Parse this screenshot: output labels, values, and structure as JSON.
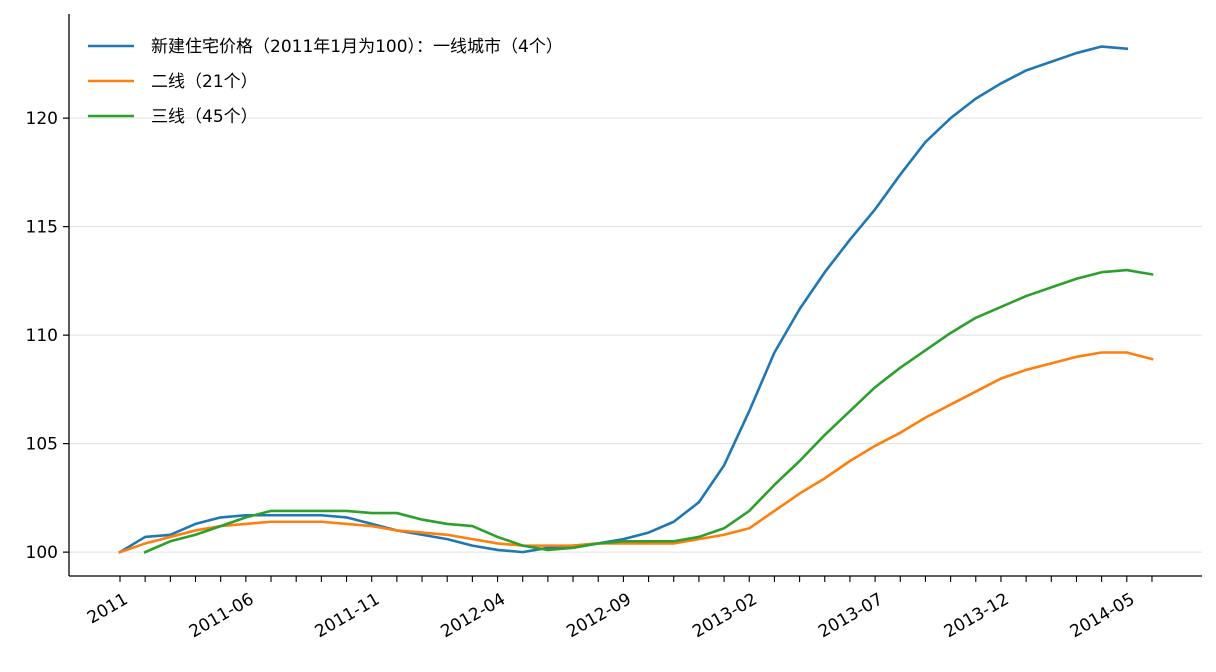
{
  "chart_data": {
    "type": "line",
    "title": "",
    "xlabel": "",
    "ylabel": "",
    "ylim": [
      98.9,
      124.8
    ],
    "y_ticks": [
      100,
      105,
      110,
      115,
      120
    ],
    "x_tick_labels": [
      "2011",
      "2011-06",
      "2011-11",
      "2012-04",
      "2012-09",
      "2013-02",
      "2013-07",
      "2013-12",
      "2014-05"
    ],
    "x_start": "2011-01",
    "grid": "horizontal",
    "legend_position": "top-left",
    "series": [
      {
        "name": "新建住宅价格（2011年1月为100）：一线城市（4个）",
        "color": "#1f77b4",
        "start_month_index": 0,
        "values": [
          100.0,
          100.7,
          100.8,
          101.3,
          101.6,
          101.7,
          101.7,
          101.7,
          101.7,
          101.6,
          101.3,
          101.0,
          100.8,
          100.6,
          100.3,
          100.1,
          100.0,
          100.2,
          100.3,
          100.4,
          100.6,
          100.9,
          101.4,
          102.3,
          104.0,
          106.5,
          109.2,
          111.2,
          112.9,
          114.4,
          115.8,
          117.4,
          118.9,
          120.0,
          120.9,
          121.6,
          122.2,
          122.6,
          123.0,
          123.3,
          123.2
        ]
      },
      {
        "name": "二线（21个）",
        "color": "#ff7f0e",
        "start_month_index": 0,
        "values": [
          100.0,
          100.4,
          100.7,
          101.0,
          101.2,
          101.3,
          101.4,
          101.4,
          101.4,
          101.3,
          101.2,
          101.0,
          100.9,
          100.8,
          100.6,
          100.4,
          100.3,
          100.3,
          100.3,
          100.4,
          100.4,
          100.4,
          100.4,
          100.6,
          100.8,
          101.1,
          101.9,
          102.7,
          103.4,
          104.2,
          104.9,
          105.5,
          106.2,
          106.8,
          107.4,
          108.0,
          108.4,
          108.7,
          109.0,
          109.2,
          109.2,
          108.9
        ]
      },
      {
        "name": "三线（45个）",
        "color": "#2ca02c",
        "start_month_index": 1,
        "values": [
          100.0,
          100.5,
          100.8,
          101.2,
          101.6,
          101.9,
          101.9,
          101.9,
          101.9,
          101.8,
          101.8,
          101.5,
          101.3,
          101.2,
          100.7,
          100.3,
          100.1,
          100.2,
          100.4,
          100.5,
          100.5,
          100.5,
          100.7,
          101.1,
          101.9,
          103.1,
          104.2,
          105.4,
          106.5,
          107.6,
          108.5,
          109.3,
          110.1,
          110.8,
          111.3,
          111.8,
          112.2,
          112.6,
          112.9,
          113.0,
          112.8
        ]
      }
    ]
  }
}
